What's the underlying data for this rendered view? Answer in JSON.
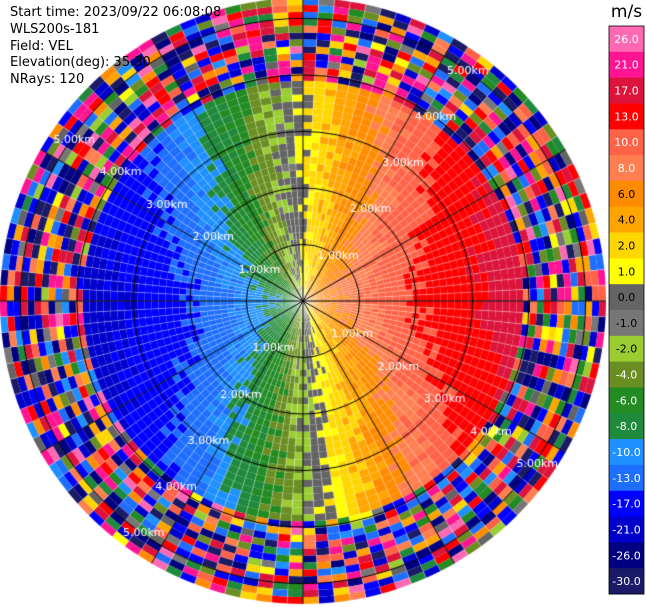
{
  "header": {
    "start_time": "Start time: 2023/09/22 06:08:08",
    "instrument": "WLS200s-181",
    "field": "Field: VEL",
    "elevation": "Elevation(deg): 35.30",
    "nrays": "NRays: 120"
  },
  "chart_data": {
    "type": "heatmap",
    "plot": "PPI (polar, range vs azimuth)",
    "units": "m/s",
    "nrays": 120,
    "range_rings_km": [
      1,
      2,
      3,
      4,
      5
    ],
    "ring_labels": [
      "1.00km",
      "2.00km",
      "3.00km",
      "4.00km",
      "5.00km"
    ],
    "spokes_deg": [
      0,
      30,
      60,
      90,
      120,
      150,
      180,
      210,
      240,
      270,
      300,
      330
    ],
    "colorbar": {
      "title": "m/s",
      "levels": [
        "-30.0",
        "-26.0",
        "-21.0",
        "-17.0",
        "-13.0",
        "-10.0",
        "-8.0",
        "-6.0",
        "-4.0",
        "-2.0",
        "-1.0",
        "0.0",
        "1.0",
        "2.0",
        "4.0",
        "6.0",
        "8.0",
        "10.0",
        "13.0",
        "17.0",
        "21.0",
        "26.0"
      ],
      "colors": [
        "#1a1a66",
        "#000080",
        "#0000cc",
        "#0000ff",
        "#1e6fff",
        "#1e90ff",
        "#1f8a3b",
        "#228b22",
        "#6b8e23",
        "#9acd32",
        "#777777",
        "#646464",
        "#ffff00",
        "#ffd700",
        "#ffa500",
        "#ff8c00",
        "#ff7f50",
        "#ff6347",
        "#ff0000",
        "#dc143c",
        "#ff1493",
        "#ff69b4"
      ]
    },
    "pattern": {
      "field": "radial velocity",
      "near_range_km": 3.8,
      "max_range_km": 5.2,
      "approaching_sector": "west (blue/green, to about -10 m/s)",
      "receding_sector": "east (orange/red, to about +10 m/s)",
      "far_range": "noise (full-scale random colors)"
    }
  }
}
